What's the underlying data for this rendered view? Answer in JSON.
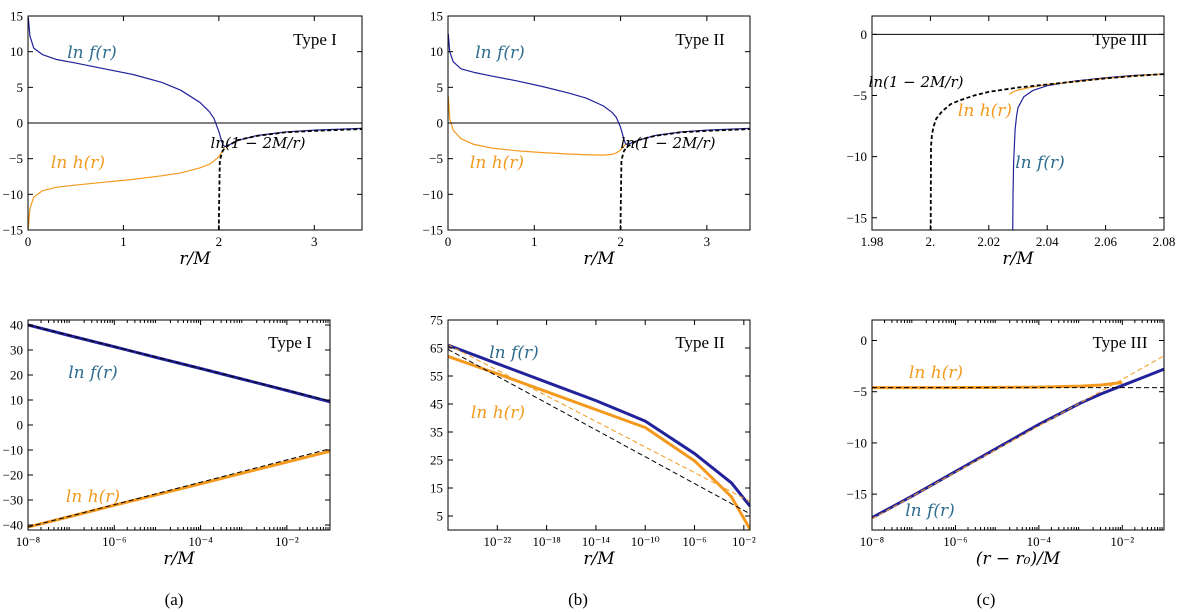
{
  "colors": {
    "f": "#22229a",
    "f_label": "#2e6c8e",
    "h": "#f39a1e",
    "asym": "#000000"
  },
  "captions": [
    "(a)",
    "(b)",
    "(c)"
  ],
  "chart_data": [
    {
      "id": "a-top",
      "type": "line",
      "title": "Type I",
      "xscale": "linear",
      "xlabel": "r/M",
      "xlim": [
        0,
        3.5
      ],
      "ylim": [
        -15,
        15
      ],
      "xticks": [
        0,
        1,
        2,
        3
      ],
      "yticks": [
        -15,
        -10,
        -5,
        0,
        5,
        10,
        15
      ],
      "labels": {
        "f": "ln f(r)",
        "h": "ln h(r)",
        "asym": "ln(1 − 2M/r)"
      },
      "series": [
        {
          "name": "ln f(r)",
          "role": "f",
          "x": [
            0.003,
            0.02,
            0.06,
            0.15,
            0.3,
            0.5,
            0.8,
            1.1,
            1.4,
            1.6,
            1.8,
            1.9,
            1.95,
            2.0,
            2.04,
            2.06,
            2.1,
            2.2,
            2.4,
            2.7,
            3.0,
            3.5
          ],
          "y": [
            14.8,
            12.2,
            10.5,
            9.6,
            8.9,
            8.4,
            7.6,
            6.8,
            5.7,
            4.6,
            2.9,
            1.6,
            0.6,
            -1.2,
            -3.0,
            -3.3,
            -3.1,
            -2.45,
            -1.75,
            -1.25,
            -1.0,
            -0.75
          ]
        },
        {
          "name": "ln h(r)",
          "role": "h",
          "x": [
            0.003,
            0.02,
            0.06,
            0.15,
            0.3,
            0.5,
            0.8,
            1.1,
            1.4,
            1.6,
            1.8,
            1.9,
            1.95,
            2.0,
            2.04,
            2.06
          ],
          "y": [
            -14.8,
            -12.0,
            -10.4,
            -9.5,
            -9.0,
            -8.7,
            -8.3,
            -7.9,
            -7.4,
            -7.0,
            -6.3,
            -5.8,
            -5.3,
            -4.7,
            -3.9,
            -3.4
          ]
        },
        {
          "name": "ln(1 − 2M/r)",
          "role": "asym",
          "x": [
            2.0001,
            2.0004,
            2.002,
            2.01,
            2.04,
            2.08,
            2.2,
            2.4,
            2.7,
            3.0,
            3.5
          ],
          "y": [
            -15,
            -13.3,
            -11.9,
            -5.2,
            -3.9,
            -3.3,
            -2.4,
            -1.8,
            -1.3,
            -1.1,
            -0.85
          ]
        }
      ]
    },
    {
      "id": "b-top",
      "type": "line",
      "title": "Type II",
      "xscale": "linear",
      "xlabel": "r/M",
      "xlim": [
        0,
        3.5
      ],
      "ylim": [
        -15,
        15
      ],
      "xticks": [
        0,
        1,
        2,
        3
      ],
      "yticks": [
        -15,
        -10,
        -5,
        0,
        5,
        10,
        15
      ],
      "labels": {
        "f": "ln f(r)",
        "h": "ln h(r)",
        "asym": "ln(1 − 2M/r)"
      },
      "series": [
        {
          "name": "ln f(r)",
          "role": "f",
          "x": [
            0.003,
            0.02,
            0.06,
            0.15,
            0.3,
            0.5,
            0.8,
            1.1,
            1.4,
            1.6,
            1.8,
            1.9,
            1.95,
            2.0,
            2.04,
            2.06,
            2.1,
            2.2,
            2.4,
            2.7,
            3.0,
            3.5
          ],
          "y": [
            12.5,
            10.0,
            8.6,
            7.6,
            7.1,
            6.6,
            5.9,
            5.1,
            4.2,
            3.5,
            2.4,
            1.5,
            0.8,
            -0.6,
            -2.3,
            -3.0,
            -2.9,
            -2.45,
            -1.75,
            -1.25,
            -1.0,
            -0.75
          ]
        },
        {
          "name": "ln h(r)",
          "role": "h",
          "x": [
            0.003,
            0.02,
            0.06,
            0.15,
            0.3,
            0.5,
            0.8,
            1.1,
            1.4,
            1.6,
            1.8,
            1.9,
            1.95,
            2.0,
            2.04,
            2.06
          ],
          "y": [
            3.8,
            0.6,
            -1.0,
            -2.2,
            -3.0,
            -3.5,
            -3.9,
            -4.15,
            -4.35,
            -4.45,
            -4.5,
            -4.4,
            -4.2,
            -3.8,
            -3.2,
            -3.0
          ]
        },
        {
          "name": "ln(1 − 2M/r)",
          "role": "asym",
          "x": [
            2.0001,
            2.0004,
            2.002,
            2.01,
            2.04,
            2.08,
            2.2,
            2.4,
            2.7,
            3.0,
            3.5
          ],
          "y": [
            -15,
            -13.3,
            -11.9,
            -5.2,
            -3.9,
            -3.3,
            -2.4,
            -1.8,
            -1.3,
            -1.1,
            -0.85
          ]
        }
      ]
    },
    {
      "id": "c-top",
      "type": "line",
      "title": "Type III",
      "xscale": "linear",
      "xlabel": "r/M",
      "xlim": [
        1.98,
        2.08
      ],
      "ylim": [
        -16,
        1.5
      ],
      "xticks": [
        1.98,
        2.0,
        2.02,
        2.04,
        2.06,
        2.08
      ],
      "xticklabels": [
        "1.98",
        "2.",
        "2.02",
        "2.04",
        "2.06",
        "2.08"
      ],
      "yticks": [
        -15,
        -10,
        -5,
        0
      ],
      "labels": {
        "f": "ln f(r)",
        "h": "ln h(r)",
        "asym": "ln(1 − 2M/r)"
      },
      "series": [
        {
          "name": "ln f(r)",
          "role": "f",
          "x": [
            2.0282,
            2.0283,
            2.0285,
            2.029,
            2.0295,
            2.03,
            2.032,
            2.035,
            2.04,
            2.05,
            2.06,
            2.07,
            2.08
          ],
          "y": [
            -16,
            -13.0,
            -10.5,
            -7.8,
            -6.7,
            -6.0,
            -5.1,
            -4.6,
            -4.2,
            -3.8,
            -3.55,
            -3.35,
            -3.25
          ]
        },
        {
          "name": "ln h(r)",
          "role": "h",
          "x": [
            2.027,
            2.028,
            2.03,
            2.035,
            2.04,
            2.05,
            2.06,
            2.07,
            2.08
          ],
          "y": [
            -4.9,
            -4.75,
            -4.55,
            -4.3,
            -4.1,
            -3.85,
            -3.6,
            -3.4,
            -3.25
          ]
        },
        {
          "name": "ln(1 − 2M/r)",
          "role": "asym",
          "x": [
            2.0001,
            2.0002,
            2.0005,
            2.001,
            2.002,
            2.004,
            2.007,
            2.01,
            2.015,
            2.02,
            2.03,
            2.04,
            2.05,
            2.06,
            2.07,
            2.08
          ],
          "y": [
            -16,
            -9.2,
            -8.3,
            -7.6,
            -6.9,
            -6.3,
            -5.7,
            -5.4,
            -5.0,
            -4.7,
            -4.35,
            -4.1,
            -3.85,
            -3.6,
            -3.4,
            -3.25
          ]
        }
      ]
    },
    {
      "id": "a-bottom",
      "type": "line",
      "title": "Type I",
      "xscale": "log",
      "xlabel": "r/M",
      "xlim_exp": [
        -8,
        -1
      ],
      "ylim": [
        -42,
        42
      ],
      "xtick_exps": [
        -8,
        -6,
        -4,
        -2
      ],
      "xticklabels": [
        "10⁻⁸",
        "10⁻⁶",
        "10⁻⁴",
        "10⁻²"
      ],
      "yticks": [
        -40,
        -30,
        -20,
        -10,
        0,
        10,
        20,
        30,
        40
      ],
      "labels": {
        "f": "ln f(r)",
        "h": "ln h(r)"
      },
      "series": [
        {
          "name": "ln f(r)",
          "role": "f",
          "thick": true,
          "x_exp": [
            -8,
            -7,
            -6,
            -5,
            -4,
            -3,
            -2,
            -1
          ],
          "y": [
            40,
            35.6,
            31.3,
            26.9,
            22.6,
            18.2,
            13.8,
            9.3
          ]
        },
        {
          "name": "ln h(r)",
          "role": "h",
          "thick": true,
          "x_exp": [
            -8,
            -7,
            -6,
            -5,
            -4,
            -3,
            -2,
            -1
          ],
          "y": [
            -40.8,
            -36.5,
            -32.1,
            -27.8,
            -23.5,
            -19.1,
            -14.8,
            -10.5
          ]
        },
        {
          "name": "asymptote (f)",
          "role": "asym",
          "dashed": true,
          "x_exp": [
            -8,
            -1
          ],
          "y": [
            40,
            9.6
          ]
        },
        {
          "name": "asymptote (h)",
          "role": "asym",
          "dashed": true,
          "x_exp": [
            -8,
            -1
          ],
          "y": [
            -40.8,
            -9.5
          ]
        }
      ]
    },
    {
      "id": "b-bottom",
      "type": "line",
      "title": "Type II",
      "xscale": "log",
      "xlabel": "r/M",
      "xlim_exp": [
        -26,
        -1.5
      ],
      "ylim": [
        0,
        75
      ],
      "xtick_exps": [
        -22,
        -18,
        -14,
        -10,
        -6,
        -2
      ],
      "xticklabels": [
        "10⁻²²",
        "10⁻¹⁸",
        "10⁻¹⁴",
        "10⁻¹⁰",
        "10⁻⁶",
        "10⁻²"
      ],
      "yticks": [
        5,
        15,
        25,
        35,
        45,
        55,
        65,
        75
      ],
      "labels": {
        "f": "ln f(r)",
        "h": "ln h(r)"
      },
      "series": [
        {
          "name": "ln f(r)",
          "role": "f",
          "thick": true,
          "x_exp": [
            -26,
            -22,
            -18,
            -14,
            -10,
            -6,
            -3,
            -1.5
          ],
          "y": [
            66,
            59.4,
            52.8,
            46.2,
            38.9,
            27.3,
            16.8,
            8.5
          ]
        },
        {
          "name": "ln h(r)",
          "role": "h",
          "thick": true,
          "x_exp": [
            -26,
            -22,
            -18,
            -14,
            -10,
            -6,
            -3,
            -1.5
          ],
          "y": [
            62,
            55.8,
            49.4,
            43.0,
            36.6,
            24.7,
            11.8,
            0.3
          ]
        },
        {
          "name": "asymptote",
          "role": "asym",
          "dashed": true,
          "x_exp": [
            -26,
            -1.5
          ],
          "y": [
            64.5,
            5.8
          ]
        },
        {
          "name": "asymptote (f)",
          "role": "h",
          "dashed": true,
          "x_exp": [
            -26,
            -1.5
          ],
          "y": [
            66.2,
            10.2
          ]
        }
      ]
    },
    {
      "id": "c-bottom",
      "type": "line",
      "title": "Type III",
      "xscale": "log",
      "xlabel": "(r − r₀)/M",
      "xlim_exp": [
        -8,
        -1
      ],
      "ylim": [
        -18.5,
        2
      ],
      "xtick_exps": [
        -8,
        -6,
        -4,
        -2
      ],
      "xticklabels": [
        "10⁻⁸",
        "10⁻⁶",
        "10⁻⁴",
        "10⁻²"
      ],
      "yticks": [
        -15,
        -10,
        -5,
        0
      ],
      "labels": {
        "f": "ln f(r)",
        "h": "ln h(r)"
      },
      "series": [
        {
          "name": "ln f(r)",
          "role": "f",
          "thick": true,
          "x_exp": [
            -8,
            -7,
            -6,
            -5,
            -4,
            -3,
            -2.5,
            -2,
            -1.5,
            -1
          ],
          "y": [
            -17.3,
            -15.1,
            -12.8,
            -10.5,
            -8.2,
            -6.1,
            -5.2,
            -4.4,
            -3.6,
            -2.8
          ]
        },
        {
          "name": "ln h(r)",
          "role": "h",
          "thick": true,
          "x_exp": [
            -8,
            -6,
            -4,
            -3,
            -2.5,
            -2.2,
            -2
          ],
          "y": [
            -4.6,
            -4.6,
            -4.55,
            -4.45,
            -4.35,
            -4.2,
            -4.1
          ]
        },
        {
          "name": "asymptote (h)",
          "role": "asym",
          "dashed": true,
          "x_exp": [
            -8,
            -1
          ],
          "y": [
            -4.6,
            -4.6
          ]
        },
        {
          "name": "asymptote (f)",
          "role": "h",
          "dashed": true,
          "x_exp": [
            -8,
            -2,
            -1
          ],
          "y": [
            -17.4,
            -3.8,
            -1.5
          ]
        }
      ]
    }
  ]
}
